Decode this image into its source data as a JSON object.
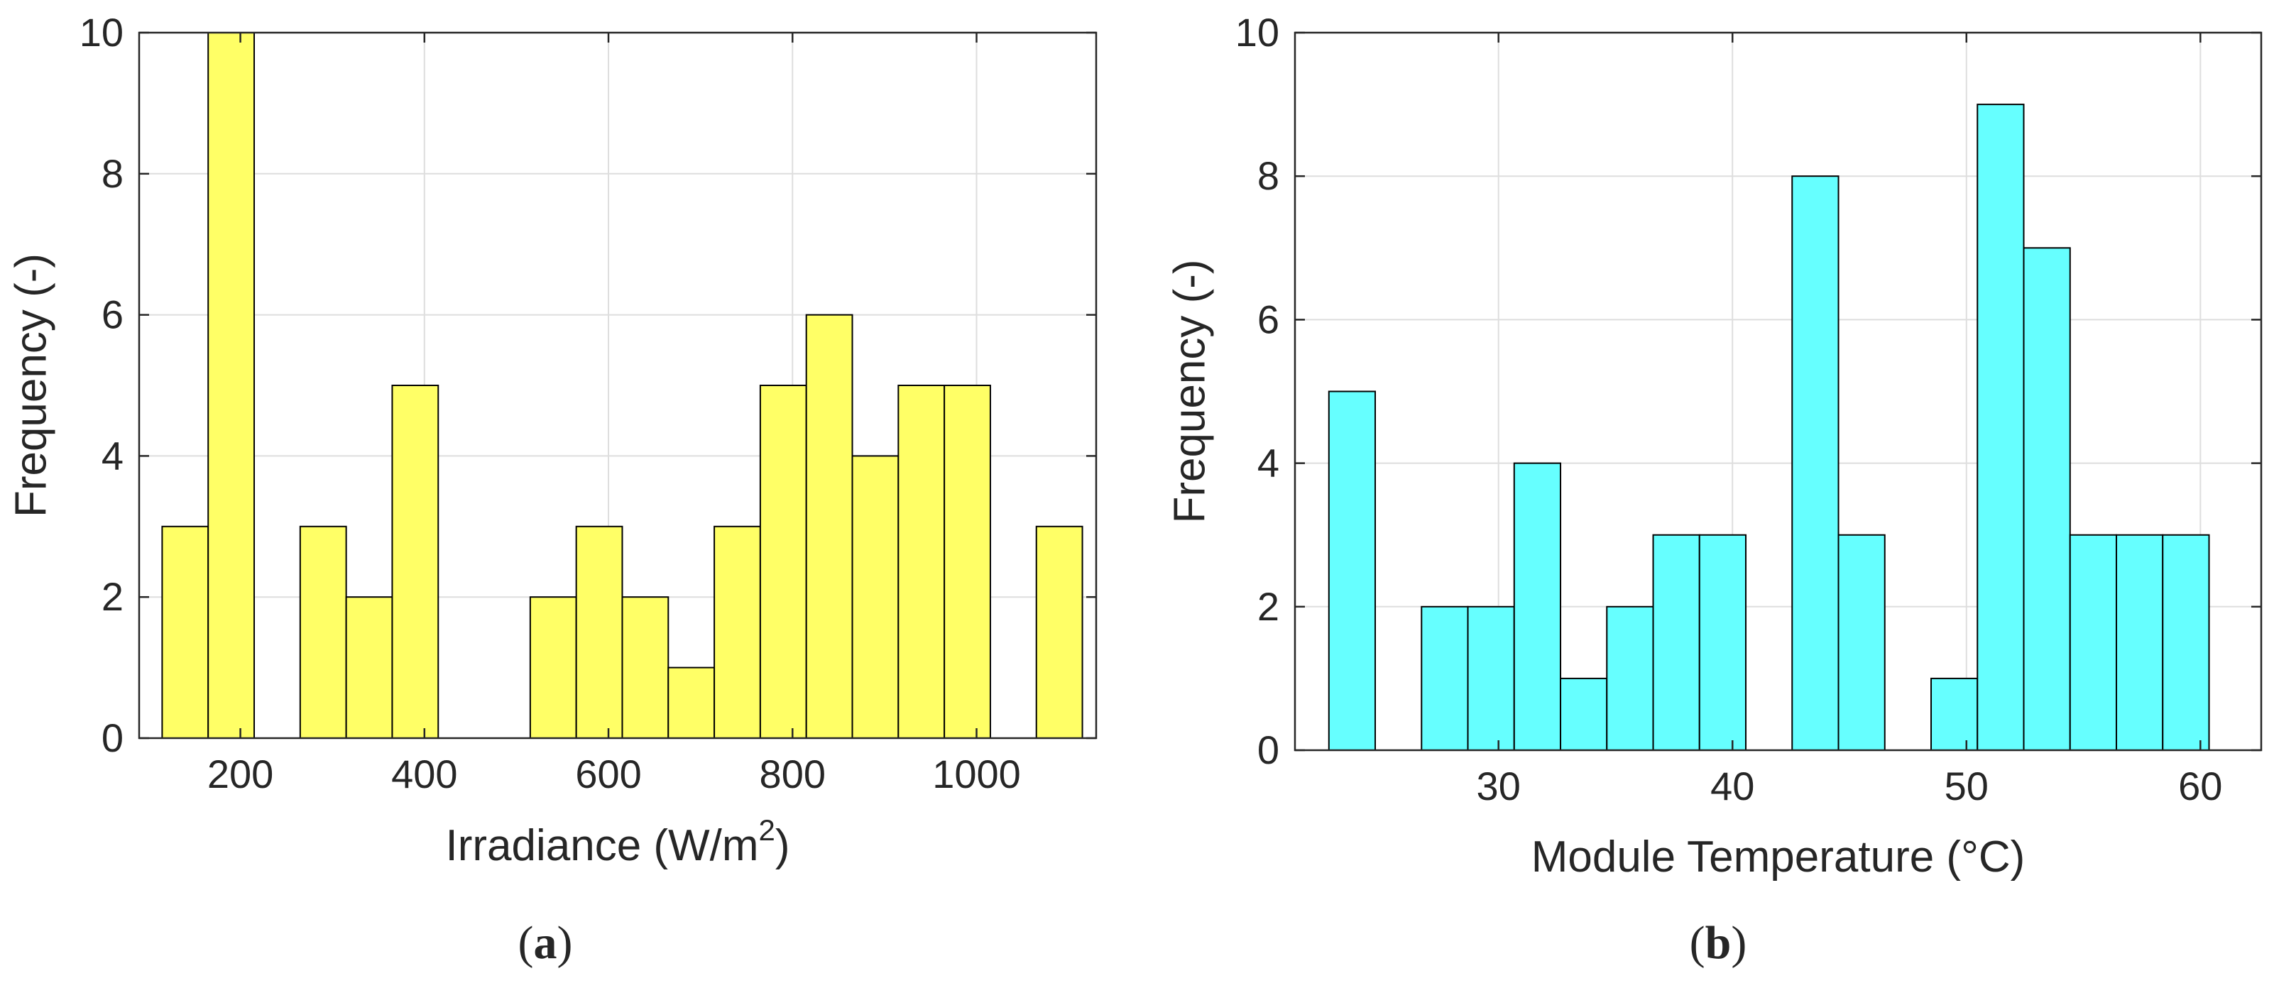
{
  "chart_data": [
    {
      "type": "bar",
      "panel_label": "a",
      "xlabel": "Irradiance (W/m",
      "xlabel_superscript": "2",
      "xlabel_suffix": ")",
      "ylabel": "Frequency (-)",
      "xlim": [
        90,
        1130
      ],
      "ylim": [
        0,
        10
      ],
      "xticks": [
        200,
        400,
        600,
        800,
        1000
      ],
      "yticks": [
        0,
        2,
        4,
        6,
        8,
        10
      ],
      "grid": true,
      "bar_color": "#ffff66",
      "bin_edges": [
        115,
        165,
        215,
        265,
        315,
        365,
        415,
        465,
        515,
        565,
        615,
        665,
        715,
        765,
        815,
        865,
        915,
        965,
        1015,
        1065,
        1115
      ],
      "values": [
        3,
        10,
        0,
        3,
        2,
        5,
        0,
        0,
        2,
        3,
        2,
        1,
        3,
        5,
        6,
        4,
        5,
        5,
        0,
        3
      ]
    },
    {
      "type": "bar",
      "panel_label": "b",
      "xlabel": "Module Temperature (°C)",
      "ylabel": "Frequency (-)",
      "xlim": [
        21.3,
        62.6
      ],
      "ylim": [
        0,
        10
      ],
      "xticks": [
        30,
        40,
        50,
        60
      ],
      "yticks": [
        0,
        2,
        4,
        6,
        8,
        10
      ],
      "grid": true,
      "bar_color": "#66ffff",
      "bin_edges": [
        22.75,
        24.73,
        26.71,
        28.69,
        30.67,
        32.65,
        34.63,
        36.61,
        38.59,
        40.57,
        42.55,
        44.53,
        46.51,
        48.49,
        50.47,
        52.45,
        54.43,
        56.41,
        58.39,
        60.37
      ],
      "values": [
        5,
        0,
        2,
        2,
        4,
        1,
        2,
        3,
        3,
        0,
        8,
        3,
        0,
        1,
        9,
        7,
        3,
        3,
        3
      ]
    }
  ]
}
